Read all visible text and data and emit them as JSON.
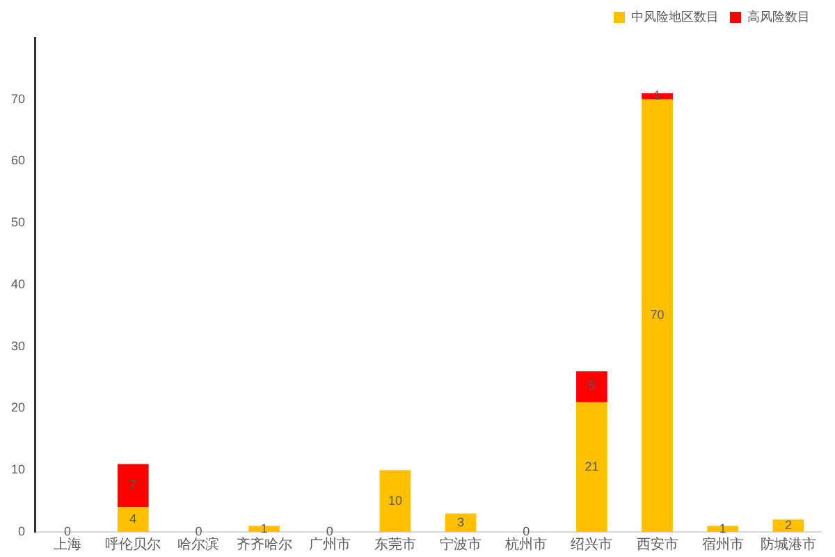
{
  "chart_data": {
    "type": "bar",
    "stacked": true,
    "categories": [
      "上海",
      "呼伦贝尔",
      "哈尔滨",
      "齐齐哈尔",
      "广州市",
      "东莞市",
      "宁波市",
      "杭州市",
      "绍兴市",
      "西安市",
      "宿州市",
      "防城港市"
    ],
    "series": [
      {
        "name": "中风险地区数目",
        "color": "#ffc000",
        "values": [
          0,
          4,
          0,
          1,
          0,
          10,
          3,
          0,
          21,
          70,
          1,
          2
        ],
        "value_labels": [
          "0",
          "4",
          "0",
          "1",
          "0",
          "10",
          "3",
          "0",
          "21",
          "70",
          "1",
          "2"
        ]
      },
      {
        "name": "高风险数目",
        "color": "#ff0000",
        "values": [
          0,
          7,
          0,
          0,
          0,
          0,
          0,
          0,
          5,
          1,
          0,
          0
        ],
        "value_labels": [
          null,
          "7",
          null,
          null,
          null,
          null,
          null,
          null,
          "5",
          "1",
          null,
          null
        ]
      }
    ],
    "ylim": [
      0,
      80
    ],
    "yticks": [
      0,
      10,
      20,
      30,
      40,
      50,
      60,
      70
    ],
    "grid": false,
    "legend": "top right"
  }
}
